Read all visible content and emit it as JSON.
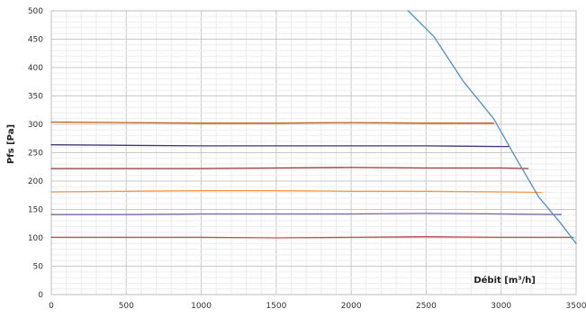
{
  "chart_data": {
    "type": "line",
    "title": "",
    "xlabel": "Débit [m³/h]",
    "ylabel": "Pfs [Pa]",
    "xlim": [
      0,
      3500
    ],
    "ylim": [
      0,
      500
    ],
    "x_ticks": [
      0,
      500,
      1000,
      1500,
      2000,
      2500,
      3000,
      3500
    ],
    "y_ticks": [
      0,
      50,
      100,
      150,
      200,
      250,
      300,
      350,
      400,
      450,
      500
    ],
    "grid": true,
    "legend": "none",
    "series": [
      {
        "color": "#c0504d",
        "points": [
          [
            0,
            101
          ],
          [
            500,
            101
          ],
          [
            1000,
            101
          ],
          [
            1500,
            100
          ],
          [
            2000,
            101
          ],
          [
            2500,
            102
          ],
          [
            3000,
            101
          ],
          [
            3480,
            101
          ]
        ]
      },
      {
        "color": "#8064a2",
        "points": [
          [
            0,
            141
          ],
          [
            500,
            141
          ],
          [
            1000,
            142
          ],
          [
            1500,
            142
          ],
          [
            2000,
            142
          ],
          [
            2500,
            143
          ],
          [
            3000,
            142
          ],
          [
            3400,
            141
          ]
        ]
      },
      {
        "color": "#f79646",
        "points": [
          [
            0,
            181
          ],
          [
            500,
            182
          ],
          [
            1000,
            183
          ],
          [
            1500,
            183
          ],
          [
            2000,
            182
          ],
          [
            2500,
            182
          ],
          [
            3000,
            181
          ],
          [
            3270,
            180
          ]
        ]
      },
      {
        "color": "#953735",
        "points": [
          [
            0,
            222
          ],
          [
            500,
            222
          ],
          [
            1000,
            222
          ],
          [
            1500,
            223
          ],
          [
            2000,
            224
          ],
          [
            2500,
            223
          ],
          [
            3000,
            223
          ],
          [
            3180,
            222
          ]
        ]
      },
      {
        "color": "#403873",
        "points": [
          [
            0,
            264
          ],
          [
            500,
            263
          ],
          [
            1000,
            262
          ],
          [
            1500,
            262
          ],
          [
            2000,
            262
          ],
          [
            2500,
            262
          ],
          [
            3000,
            261
          ],
          [
            3050,
            261
          ]
        ]
      },
      {
        "color": "#c55a11",
        "points": [
          [
            0,
            304
          ],
          [
            500,
            303
          ],
          [
            1000,
            302
          ],
          [
            1500,
            302
          ],
          [
            2000,
            303
          ],
          [
            2500,
            302
          ],
          [
            2950,
            302
          ]
        ]
      },
      {
        "color": "#4a8fd0",
        "points": [
          [
            2380,
            500
          ],
          [
            2550,
            455
          ],
          [
            2750,
            375
          ],
          [
            2950,
            310
          ],
          [
            3100,
            240
          ],
          [
            3250,
            172
          ],
          [
            3400,
            125
          ],
          [
            3500,
            90
          ]
        ]
      }
    ]
  }
}
